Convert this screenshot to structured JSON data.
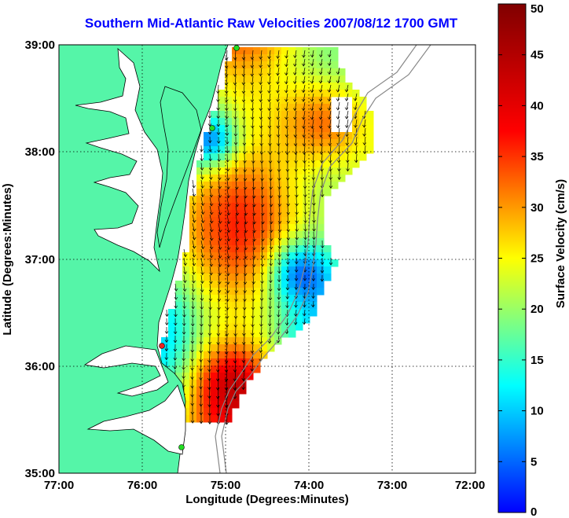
{
  "map": {
    "title": "Southern Mid-Atlantic Raw Velocities 2007/08/12 1700 GMT",
    "x_axis_label": "Longitude (Degrees:Minutes)",
    "y_axis_label": "Latitude (Degrees:Minutes)",
    "x_ticks": [
      "77:00",
      "76:00",
      "75:00",
      "74:00",
      "73:00",
      "72:00"
    ],
    "y_ticks": [
      "39:00",
      "38:00",
      "37:00",
      "36:00",
      "35:00"
    ],
    "land_color": "#55f5a8",
    "coastline_color": "#000000",
    "bathymetry_color": "#888888",
    "gridlines": "dotted"
  },
  "colorbar": {
    "label": "Surface Velocity (cm/s)",
    "ticks": [
      "0",
      "5",
      "10",
      "15",
      "20",
      "25",
      "30",
      "35",
      "40",
      "45",
      "50"
    ],
    "min": 0,
    "max": 50,
    "colormap": "jet"
  },
  "stations": [
    {
      "color": "#22dd22"
    },
    {
      "color": "#22dd22"
    },
    {
      "color": "#ee2222"
    },
    {
      "color": "#22dd22"
    }
  ]
}
